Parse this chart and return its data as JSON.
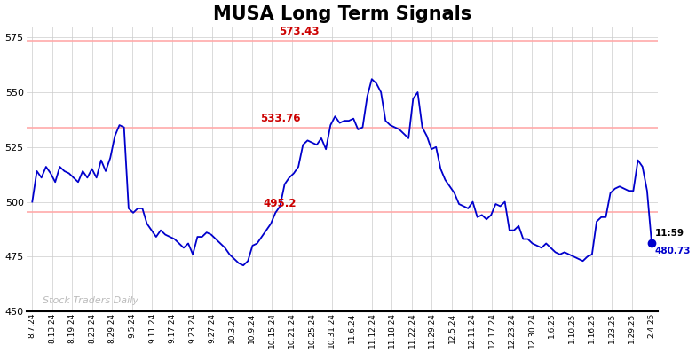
{
  "title": "MUSA Long Term Signals",
  "title_fontsize": 15,
  "title_fontweight": "bold",
  "background_color": "#ffffff",
  "plot_bg_color": "#ffffff",
  "grid_color": "#cccccc",
  "line_color": "#0000cc",
  "line_width": 1.5,
  "ylim": [
    450,
    580
  ],
  "yticks": [
    450,
    475,
    500,
    525,
    550,
    575
  ],
  "hline_573": 573.43,
  "hline_533": 533.76,
  "hline_495": 495.2,
  "hline_color": "#ffaaaa",
  "label_573_color": "#cc0000",
  "label_533_color": "#cc0000",
  "label_495_color": "#cc0000",
  "watermark": "Stock Traders Daily",
  "watermark_color": "#bbbbbb",
  "end_label_time": "11:59",
  "end_label_price": "480.73",
  "end_dot_color": "#0000cc",
  "xtick_labels": [
    "8.7.24",
    "8.13.24",
    "8.19.24",
    "8.23.24",
    "8.29.24",
    "9.5.24",
    "9.11.24",
    "9.17.24",
    "9.23.24",
    "9.27.24",
    "10.3.24",
    "10.9.24",
    "10.15.24",
    "10.21.24",
    "10.25.24",
    "10.31.24",
    "11.6.24",
    "11.12.24",
    "11.18.24",
    "11.22.24",
    "11.29.24",
    "12.5.24",
    "12.11.24",
    "12.17.24",
    "12.23.24",
    "12.30.24",
    "1.6.25",
    "1.10.25",
    "1.16.25",
    "1.23.25",
    "1.29.25",
    "2.4.25"
  ],
  "prices": [
    500,
    514,
    511,
    516,
    513,
    509,
    516,
    514,
    513,
    511,
    509,
    514,
    511,
    515,
    511,
    519,
    514,
    520,
    530,
    535,
    534,
    497,
    495,
    497,
    497,
    490,
    487,
    484,
    487,
    485,
    484,
    483,
    481,
    479,
    481,
    476,
    484,
    484,
    486,
    485,
    483,
    481,
    479,
    476,
    474,
    472,
    471,
    473,
    480,
    481,
    484,
    487,
    490,
    495,
    498,
    508,
    511,
    513,
    516,
    526,
    528,
    527,
    526,
    529,
    524,
    535,
    539,
    536,
    537,
    537,
    538,
    533,
    534,
    548,
    556,
    554,
    550,
    537,
    535,
    534,
    533,
    531,
    529,
    547,
    550,
    534,
    530,
    524,
    525,
    515,
    510,
    507,
    504,
    499,
    498,
    497,
    500,
    493,
    494,
    492,
    494,
    499,
    498,
    500,
    487,
    487,
    489,
    483,
    483,
    481,
    480,
    479,
    481,
    479,
    477,
    476,
    477,
    476,
    475,
    474,
    473,
    475,
    476,
    491,
    493,
    493,
    504,
    506,
    507,
    506,
    505,
    505,
    519,
    516,
    505,
    481
  ]
}
